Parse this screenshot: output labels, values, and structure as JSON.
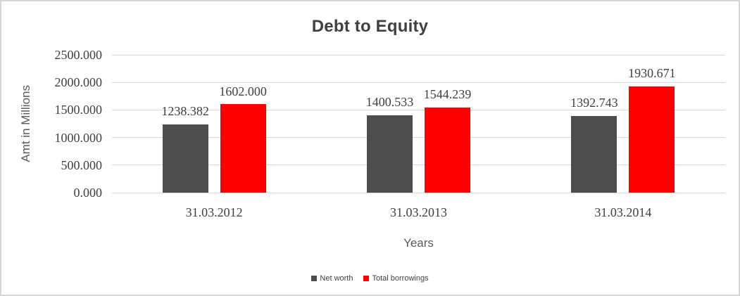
{
  "page": {
    "background": "#ffffff",
    "border_color": "#d6d6d6"
  },
  "chart_data": {
    "type": "bar",
    "title": "Debt to Equity",
    "xlabel": "Years",
    "ylabel": "Amt in Millions",
    "categories": [
      "31.03.2012",
      "31.03.2013",
      "31.03.2014"
    ],
    "series": [
      {
        "name": "Net worth",
        "color": "#4d4d4d",
        "values": [
          1238.382,
          1400.533,
          1392.743
        ]
      },
      {
        "name": "Total borrowings",
        "color": "#ff0000",
        "values": [
          1602.0,
          1544.239,
          1930.671
        ]
      }
    ],
    "data_labels_visible": true,
    "value_label_decimals": 3,
    "ylim": [
      0,
      2500
    ],
    "ytick_step": 500,
    "ytick_labels": [
      "0.000",
      "500.000",
      "1000.000",
      "1500.000",
      "2000.000",
      "2500.000"
    ],
    "grid": true,
    "gridline_color": "#d9d9d9",
    "legend_position": "bottom",
    "colors": {
      "title_text": "#404040",
      "tick_text": "#404040",
      "axis_title_text": "#595959",
      "legend_text": "#404040"
    }
  }
}
